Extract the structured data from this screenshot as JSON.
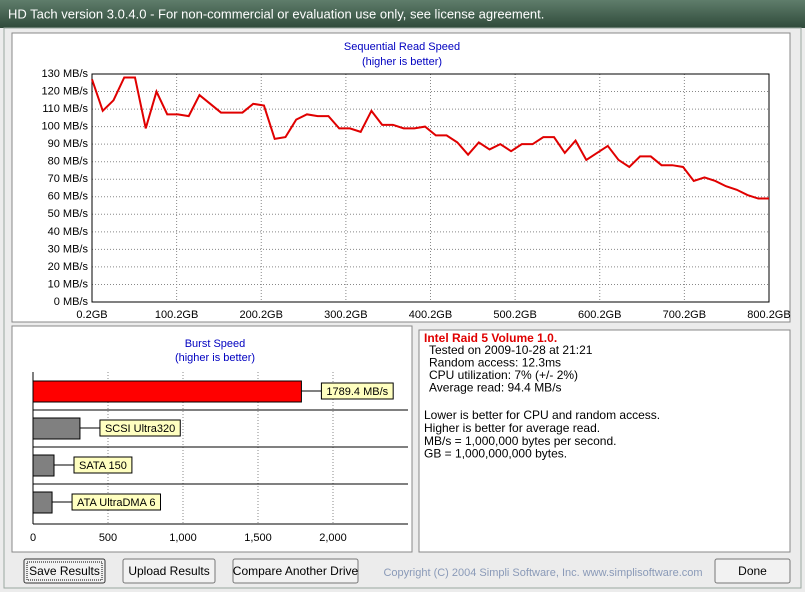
{
  "window": {
    "title": "HD Tach version 3.0.4.0  - For non-commercial or evaluation use only, see license agreement."
  },
  "read_chart": {
    "type": "line",
    "title": "Sequential Read Speed",
    "subtitle": "(higher is better)",
    "x": [
      0.2,
      12.9,
      25.6,
      38.3,
      51.0,
      63.7,
      76.4,
      89.1,
      101.8,
      114.5,
      127.2,
      139.9,
      152.6,
      165.3,
      178.0,
      190.7,
      203.4,
      216.1,
      228.8,
      241.5,
      254.2,
      266.9,
      279.6,
      292.3,
      305.0,
      317.7,
      330.4,
      343.1,
      355.8,
      368.5,
      381.1,
      393.8,
      406.5,
      419.2,
      431.9,
      444.6,
      457.3,
      470.0,
      482.7,
      495.4,
      508.1,
      520.8,
      533.5,
      546.2,
      558.9,
      571.6,
      584.3,
      597.0,
      609.7,
      622.4,
      635.1,
      647.8,
      660.5,
      673.2,
      685.9,
      698.6,
      711.3,
      724.0,
      736.7,
      749.4,
      762.1,
      774.8,
      787.5,
      800.2
    ],
    "series": [
      {
        "color": "#e00000",
        "values": [
          127,
          109,
          115,
          128,
          128,
          99,
          120,
          107,
          107,
          106,
          118,
          113,
          108,
          108,
          108,
          113,
          112,
          93,
          94,
          104,
          107,
          106,
          106,
          99,
          99,
          97,
          109,
          101,
          101,
          99,
          99,
          100,
          95,
          95,
          91,
          84,
          91,
          87,
          90,
          86,
          90,
          90,
          94,
          94,
          85,
          92,
          81,
          85,
          89,
          81,
          77,
          83,
          83,
          78,
          78,
          77,
          69,
          71,
          69,
          66,
          64,
          61,
          59,
          59
        ]
      }
    ],
    "xlim": [
      0.2,
      800.2
    ],
    "ylim": [
      0,
      130
    ],
    "xticks": [
      {
        "value": 0.2,
        "label": "0.2GB"
      },
      {
        "value": 100.2,
        "label": "100.2GB"
      },
      {
        "value": 200.2,
        "label": "200.2GB"
      },
      {
        "value": 300.2,
        "label": "300.2GB"
      },
      {
        "value": 400.2,
        "label": "400.2GB"
      },
      {
        "value": 500.2,
        "label": "500.2GB"
      },
      {
        "value": 600.2,
        "label": "600.2GB"
      },
      {
        "value": 700.2,
        "label": "700.2GB"
      },
      {
        "value": 800.2,
        "label": "800.2GB"
      }
    ],
    "yticks": [
      {
        "value": 0,
        "label": "0 MB/s"
      },
      {
        "value": 10,
        "label": "10 MB/s"
      },
      {
        "value": 20,
        "label": "20 MB/s"
      },
      {
        "value": 30,
        "label": "30 MB/s"
      },
      {
        "value": 40,
        "label": "40 MB/s"
      },
      {
        "value": 50,
        "label": "50 MB/s"
      },
      {
        "value": 60,
        "label": "60 MB/s"
      },
      {
        "value": 70,
        "label": "70 MB/s"
      },
      {
        "value": 80,
        "label": "80 MB/s"
      },
      {
        "value": 90,
        "label": "90 MB/s"
      },
      {
        "value": 100,
        "label": "100 MB/s"
      },
      {
        "value": 110,
        "label": "110 MB/s"
      },
      {
        "value": 120,
        "label": "120 MB/s"
      },
      {
        "value": 130,
        "label": "130 MB/s"
      }
    ],
    "grid": true
  },
  "burst_chart": {
    "type": "bar",
    "orientation": "horizontal",
    "title": "Burst Speed",
    "subtitle": "(higher is better)",
    "categories": [
      null,
      "SCSI Ultra320",
      "SATA 150",
      "ATA UltraDMA 6"
    ],
    "values": [
      1789.4,
      313,
      140,
      127
    ],
    "value_labels": [
      "1789.4 MB/s",
      null,
      null,
      null
    ],
    "colors": [
      "#ff0000",
      "#808080",
      "#808080",
      "#808080"
    ],
    "xlim": [
      0,
      2500
    ],
    "xticks": [
      0,
      500,
      {
        "value": 1000,
        "label": "1,000"
      },
      {
        "value": 1500,
        "label": "1,500"
      },
      {
        "value": 2000,
        "label": "2,000"
      }
    ],
    "grid": true
  },
  "info": {
    "title": "Intel Raid 5 Volume 1.0.",
    "results": [
      "Tested on 2009-10-28 at 21:21",
      "Random access: 12.3ms",
      "CPU utilization: 7% (+/- 2%)",
      "Average read: 94.4 MB/s"
    ],
    "notes": [
      "Lower is better for CPU and random access.",
      "Higher is better for average read.",
      "MB/s = 1,000,000 bytes per second.",
      "GB = 1,000,000,000 bytes."
    ]
  },
  "buttons": [
    "Save Results",
    "Upload Results",
    "Compare Another Drive",
    "Done"
  ],
  "copyright": "Copyright (C) 2004 Simpli Software, Inc. www.simplisoftware.com"
}
